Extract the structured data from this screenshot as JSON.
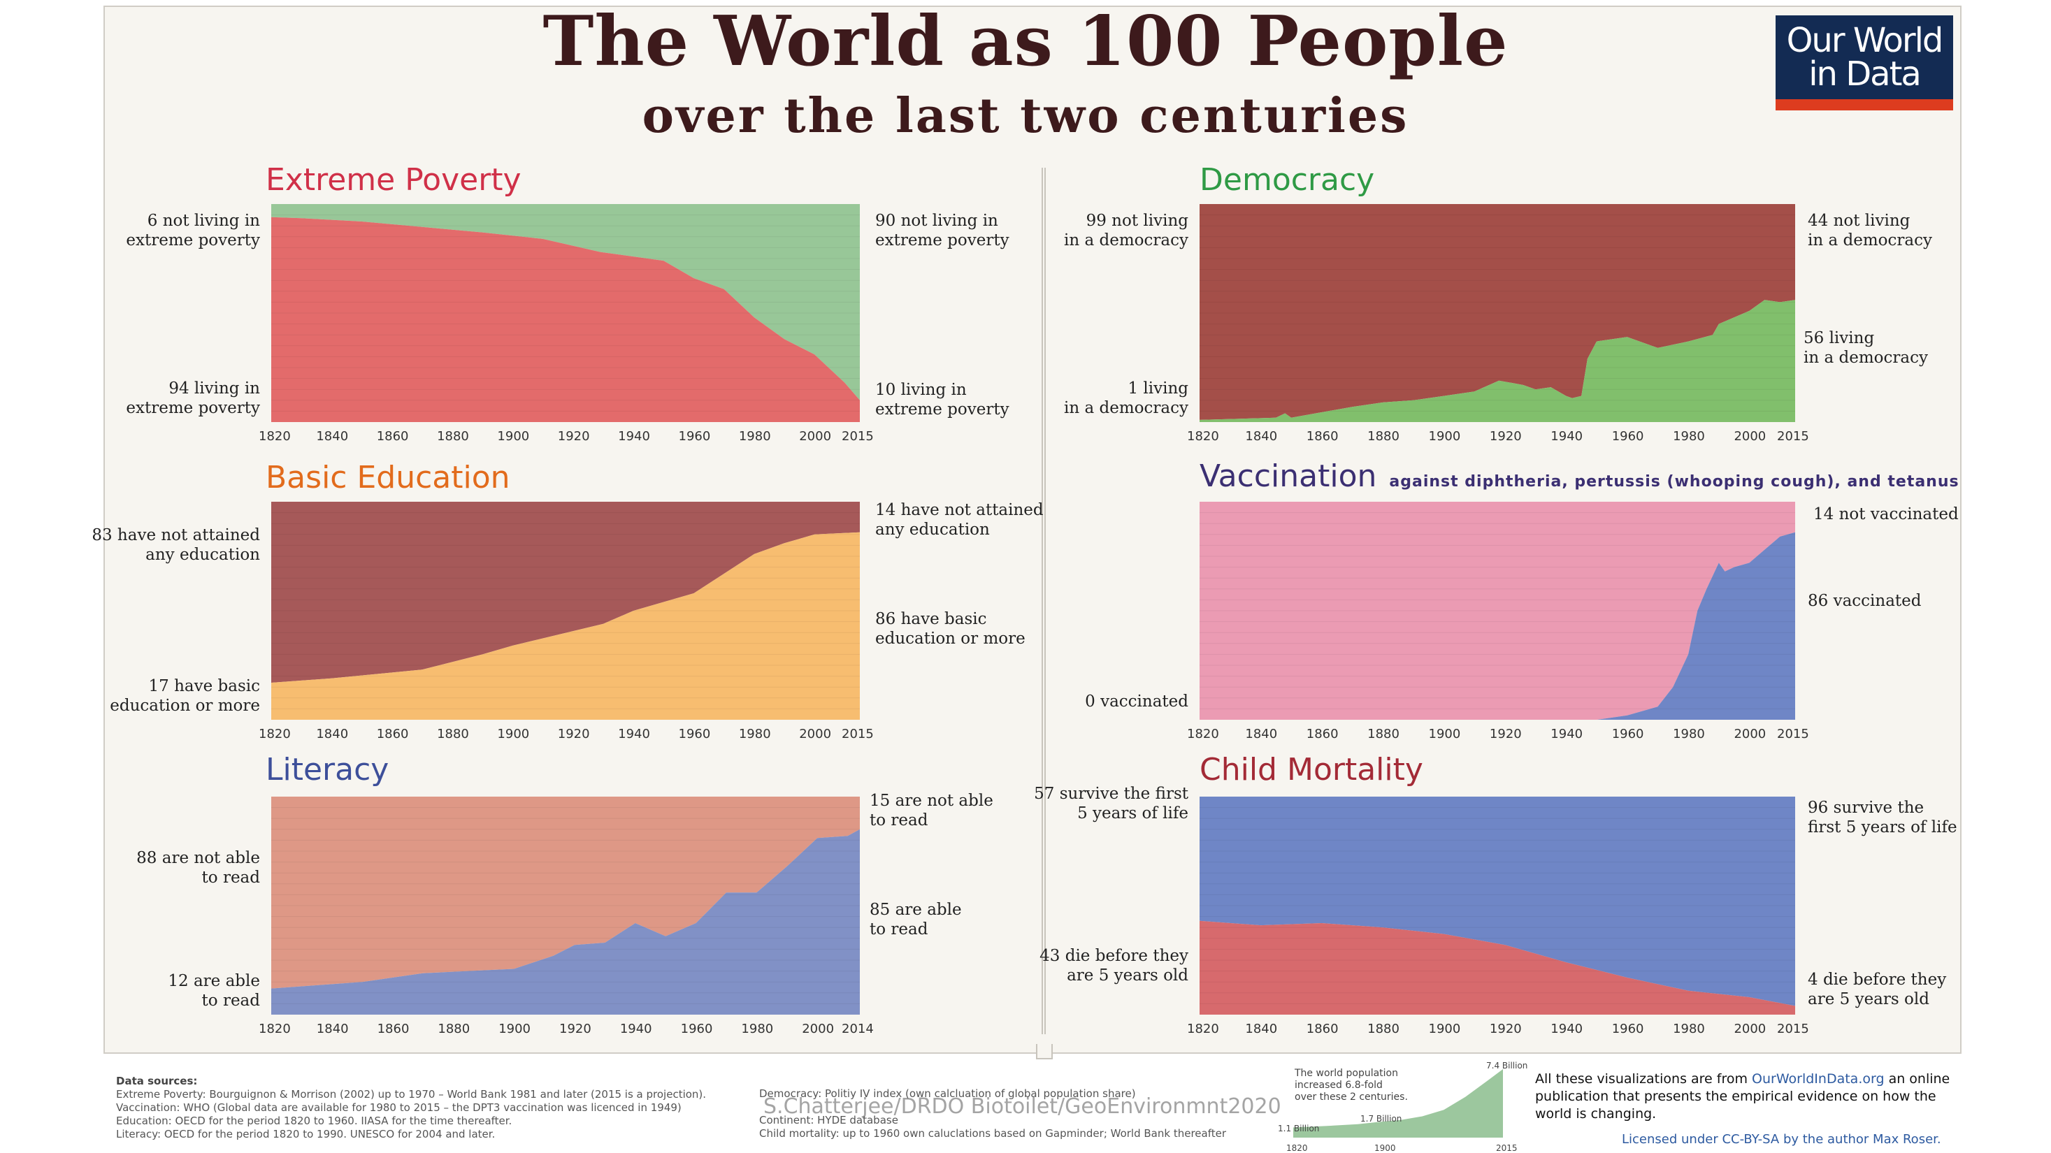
{
  "header": {
    "title": "The World as 100 People",
    "subtitle": "over the last two centuries",
    "logo_line1": "Our World",
    "logo_line2": "in Data"
  },
  "colors": {
    "poverty_title": "#d03048",
    "poverty_living": "#e36b6b",
    "poverty_not": "#98c798",
    "education_title": "#e26b1c",
    "education_none": "#a65959",
    "education_basic": "#f7bd70",
    "literacy_title": "#3d4f9a",
    "literacy_not": "#de9886",
    "literacy_able": "#8191c6",
    "democracy_title": "#2f9a45",
    "democracy_not": "#a44f49",
    "democracy_living": "#81bf6c",
    "vaccination_title": "#3b2f72",
    "vaccination_not": "#eb9bb3",
    "vaccination_yes": "#6f86c6",
    "mortality_title": "#a32a36",
    "mortality_survive": "#6f86c6",
    "mortality_die": "#d76a6d"
  },
  "chart_data": [
    {
      "id": "poverty",
      "type": "area",
      "title": "Extreme Poverty",
      "x": [
        1820,
        1830,
        1850,
        1870,
        1890,
        1910,
        1929,
        1950,
        1960,
        1970,
        1980,
        1990,
        2000,
        2010,
        2015
      ],
      "series": [
        {
          "name": "living in extreme poverty",
          "values": [
            94,
            93.5,
            92,
            89.5,
            87,
            84,
            78,
            74,
            66,
            61,
            48,
            38,
            31,
            18,
            10
          ]
        },
        {
          "name": "not living in extreme poverty",
          "values": [
            6,
            6.5,
            8,
            10.5,
            13,
            16,
            22,
            26,
            34,
            39,
            52,
            62,
            69,
            82,
            90
          ]
        }
      ],
      "left_labels": {
        "top": "6 not living in\nextreme poverty",
        "bottom": "94 living in\nextreme poverty"
      },
      "right_labels": {
        "top": "90 not living in\nextreme poverty",
        "bottom": "10 living in\nextreme poverty"
      },
      "xticks": [
        "1820",
        "1840",
        "1860",
        "1880",
        "1900",
        "1920",
        "1940",
        "1960",
        "1980",
        "2000",
        "2015"
      ],
      "xlim": [
        1820,
        2015
      ],
      "ylim": [
        0,
        100
      ]
    },
    {
      "id": "education",
      "type": "area",
      "title": "Basic Education",
      "x": [
        1820,
        1840,
        1870,
        1890,
        1900,
        1930,
        1940,
        1960,
        1970,
        1980,
        1990,
        2000,
        2015
      ],
      "series": [
        {
          "name": "have basic education or more",
          "values": [
            17,
            19,
            23,
            30,
            34,
            44,
            50,
            58,
            67,
            76,
            81,
            85,
            86
          ]
        },
        {
          "name": "have not attained any education",
          "values": [
            83,
            81,
            77,
            70,
            66,
            56,
            50,
            42,
            33,
            24,
            19,
            15,
            14
          ]
        }
      ],
      "left_labels": {
        "top": "83 have not attained\nany education",
        "bottom": "17 have basic\neducation or more"
      },
      "right_labels": {
        "top": "14 have not attained\nany education",
        "bottom": "86 have basic\neducation or more"
      },
      "xticks": [
        "1820",
        "1840",
        "1860",
        "1880",
        "1900",
        "1920",
        "1940",
        "1960",
        "1980",
        "2000",
        "2015"
      ],
      "xlim": [
        1820,
        2015
      ],
      "ylim": [
        0,
        100
      ]
    },
    {
      "id": "literacy",
      "type": "area",
      "title": "Literacy",
      "x": [
        1820,
        1850,
        1870,
        1900,
        1913,
        1920,
        1930,
        1940,
        1950,
        1960,
        1970,
        1980,
        1990,
        2000,
        2010,
        2014
      ],
      "series": [
        {
          "name": "are able to read",
          "values": [
            12,
            15,
            19,
            21,
            27,
            32,
            33,
            42,
            36,
            42,
            56,
            56,
            68,
            81,
            82,
            85
          ]
        },
        {
          "name": "are not able to read",
          "values": [
            88,
            85,
            81,
            79,
            73,
            68,
            67,
            58,
            64,
            58,
            44,
            44,
            32,
            19,
            18,
            15
          ]
        }
      ],
      "left_labels": {
        "top": "88 are not able\nto read",
        "bottom": "12 are able\nto read"
      },
      "right_labels": {
        "top": "15 are not able\nto read",
        "bottom": "85 are able\nto read"
      },
      "xticks": [
        "1820",
        "1840",
        "1860",
        "1880",
        "1900",
        "1920",
        "1940",
        "1960",
        "1980",
        "2000",
        "2014"
      ],
      "xlim": [
        1820,
        2014
      ],
      "ylim": [
        0,
        100
      ]
    },
    {
      "id": "democracy",
      "type": "area",
      "title": "Democracy",
      "x": [
        1820,
        1845,
        1848,
        1850,
        1870,
        1880,
        1890,
        1900,
        1910,
        1918,
        1922,
        1926,
        1930,
        1935,
        1940,
        1942,
        1945,
        1947,
        1950,
        1960,
        1970,
        1980,
        1988,
        1990,
        2000,
        2005,
        2010,
        2015
      ],
      "series": [
        {
          "name": "living in a democracy",
          "values": [
            1,
            2,
            4,
            2,
            7,
            9,
            10,
            12,
            14,
            19,
            18,
            17,
            15,
            16,
            12,
            11,
            12,
            29,
            37,
            39,
            34,
            37,
            40,
            45,
            51,
            56,
            55,
            56
          ]
        },
        {
          "name": "not living in a democracy",
          "values": [
            99,
            98,
            96,
            98,
            93,
            91,
            90,
            88,
            86,
            81,
            82,
            83,
            85,
            84,
            88,
            89,
            88,
            71,
            63,
            61,
            66,
            63,
            60,
            55,
            49,
            44,
            45,
            44
          ]
        }
      ],
      "left_labels": {
        "top": "99 not living\nin a democracy",
        "bottom": "1 living\nin a democracy"
      },
      "right_labels": {
        "top": "44 not living\nin a democracy",
        "middle": "56 living\nin a democracy"
      },
      "xticks": [
        "1820",
        "1840",
        "1860",
        "1880",
        "1900",
        "1920",
        "1940",
        "1960",
        "1980",
        "2000",
        "2015"
      ],
      "xlim": [
        1820,
        2015
      ],
      "ylim": [
        0,
        100
      ]
    },
    {
      "id": "vaccination",
      "type": "area",
      "title": "Vaccination",
      "subtitle": "against diphtheria, pertussis (whooping cough), and tetanus",
      "x": [
        1820,
        1950,
        1960,
        1970,
        1975,
        1980,
        1983,
        1986,
        1990,
        1992,
        1995,
        2000,
        2005,
        2010,
        2015
      ],
      "series": [
        {
          "name": "vaccinated",
          "values": [
            0,
            0,
            2,
            6,
            15,
            30,
            50,
            60,
            72,
            68,
            70,
            72,
            78,
            84,
            86
          ]
        },
        {
          "name": "not vaccinated",
          "values": [
            100,
            100,
            98,
            94,
            85,
            70,
            50,
            40,
            28,
            32,
            30,
            28,
            22,
            16,
            14
          ]
        }
      ],
      "left_labels": {
        "bottom": "0 vaccinated"
      },
      "right_labels": {
        "top": "14 not vaccinated",
        "middle": "86 vaccinated"
      },
      "xticks": [
        "1820",
        "1840",
        "1860",
        "1880",
        "1900",
        "1920",
        "1940",
        "1960",
        "1980",
        "2000",
        "2015"
      ],
      "xlim": [
        1820,
        2015
      ],
      "ylim": [
        0,
        100
      ]
    },
    {
      "id": "mortality",
      "type": "area",
      "title": "Child Mortality",
      "x": [
        1820,
        1840,
        1860,
        1880,
        1900,
        1920,
        1940,
        1960,
        1980,
        2000,
        2015
      ],
      "series": [
        {
          "name": "die before they are 5 years old",
          "values": [
            43,
            41,
            42,
            40,
            37,
            32,
            24,
            17,
            11,
            8,
            4
          ]
        },
        {
          "name": "survive the first 5 years of life",
          "values": [
            57,
            59,
            58,
            60,
            63,
            68,
            76,
            83,
            89,
            92,
            96
          ]
        }
      ],
      "left_labels": {
        "top": "57 survive the first\n5 years of life",
        "bottom": "43 die before they\nare 5 years old"
      },
      "right_labels": {
        "top": "96 survive the\nfirst 5 years of life",
        "bottom": "4 die before they\nare 5 years old"
      },
      "xticks": [
        "1820",
        "1840",
        "1860",
        "1880",
        "1900",
        "1920",
        "1940",
        "1960",
        "1980",
        "2000",
        "2015"
      ],
      "xlim": [
        1820,
        2015
      ],
      "ylim": [
        0,
        100
      ]
    },
    {
      "id": "population",
      "type": "area",
      "title": "",
      "x": [
        1820,
        1850,
        1880,
        1900,
        1920,
        1940,
        1960,
        1980,
        2000,
        2015
      ],
      "series": [
        {
          "name": "",
          "values": [
            1.1,
            1.25,
            1.45,
            1.7,
            1.9,
            2.3,
            3.0,
            4.4,
            6.1,
            7.4
          ]
        }
      ],
      "text": "The world population\nincreased 6.8-fold\nover these 2 centuries.",
      "point_labels": {
        "start": "1.1 Billion",
        "mid": "1.7 Billion",
        "end": "7.4 Billion"
      },
      "xticks": [
        "1820",
        "1900",
        "2015"
      ],
      "xlim": [
        1820,
        2015
      ],
      "ylim": [
        0,
        7.4
      ]
    }
  ],
  "footer": {
    "sources_heading": "Data sources:",
    "sources_left": [
      "Extreme Poverty: Bourguignon & Morrison (2002) up to 1970 – World Bank 1981 and later (2015 is a projection).",
      "Vaccination: WHO (Global data are available for 1980 to 2015 – the DPT3 vaccination was licenced in 1949)",
      "Education: OECD for the period 1820 to 1960. IIASA for the time thereafter.",
      "Literacy: OECD for the period 1820 to 1990. UNESCO for 2004 and later."
    ],
    "sources_right": [
      "Democracy: Politiy IV index (own calcluation of global population share)",
      "Continent: HYDE database",
      "Child mortality: up to 1960 own caluclations based on Gapminder; World Bank thereafter"
    ],
    "watermark": "S.Chatterjee/DRDO Biotoilet/GeoEnvironmnt2020",
    "about_prefix": "All these visualizations are from ",
    "about_link": "OurWorldInData.org",
    "about_suffix": " an online publication that presents the empirical evidence on how the world is changing.",
    "license": "Licensed under CC-BY-SA by the author Max Roser."
  }
}
